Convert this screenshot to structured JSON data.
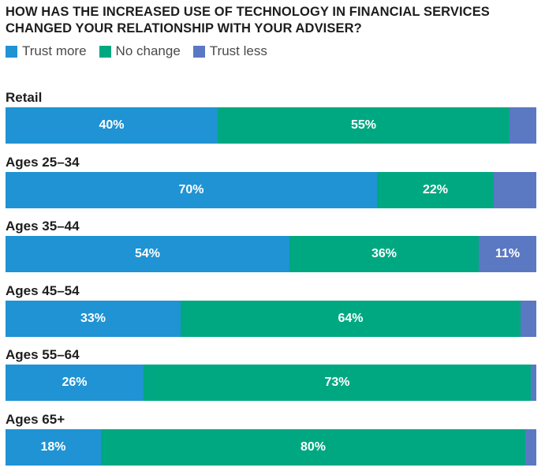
{
  "chart_data": {
    "type": "bar",
    "orientation": "horizontal-stacked",
    "title_lines": [
      "HOW HAS THE INCREASED USE OF TECHNOLOGY IN FINANCIAL SERVICES",
      "CHANGED YOUR RELATIONSHIP WITH YOUR ADVISER?"
    ],
    "legend": [
      {
        "name": "Trust more",
        "color": "#1f93d3"
      },
      {
        "name": "No change",
        "color": "#00a881"
      },
      {
        "name": "Trust less",
        "color": "#5b78c3"
      }
    ],
    "legend_placement": "top-left",
    "categories": [
      "Retail",
      "Ages 25–34",
      "Ages 35–44",
      "Ages 45–54",
      "Ages 55–64",
      "Ages 65+"
    ],
    "series": [
      {
        "name": "Trust more",
        "values": [
          40,
          70,
          54,
          33,
          26,
          18
        ],
        "labels": [
          "40%",
          "70%",
          "54%",
          "33%",
          "26%",
          "18%"
        ]
      },
      {
        "name": "No change",
        "values": [
          55,
          22,
          36,
          64,
          73,
          80
        ],
        "labels": [
          "55%",
          "22%",
          "36%",
          "64%",
          "73%",
          "80%"
        ]
      },
      {
        "name": "Trust less",
        "values": [
          5,
          8,
          11,
          3,
          1,
          2
        ],
        "labels": [
          "",
          "",
          "11%",
          "",
          "",
          ""
        ]
      }
    ],
    "xlim": [
      0,
      100
    ],
    "grid": false
  }
}
